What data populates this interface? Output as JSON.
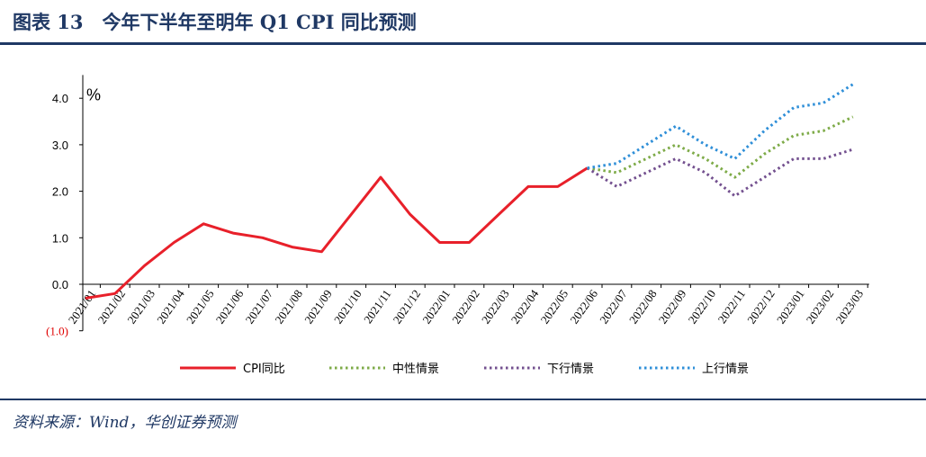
{
  "figure": {
    "title": "图表 13　今年下半年至明年 Q1 CPI 同比预测",
    "source": "资料来源：Wind，华创证券预测"
  },
  "chart_data": {
    "type": "line",
    "unit_label": "%",
    "ylim": [
      -1.0,
      4.5
    ],
    "yticks": [
      {
        "value": 4.0,
        "label": "4.0"
      },
      {
        "value": 3.0,
        "label": "3.0"
      },
      {
        "value": 2.0,
        "label": "2.0"
      },
      {
        "value": 1.0,
        "label": "1.0"
      },
      {
        "value": 0.0,
        "label": "0.0"
      },
      {
        "value": -1.0,
        "label": "(1.0)"
      }
    ],
    "categories": [
      "2021/01",
      "2021/02",
      "2021/03",
      "2021/04",
      "2021/05",
      "2021/06",
      "2021/07",
      "2021/08",
      "2021/09",
      "2021/10",
      "2021/11",
      "2021/12",
      "2022/01",
      "2022/02",
      "2022/03",
      "2022/04",
      "2022/05",
      "2022/06",
      "2022/07",
      "2022/08",
      "2022/09",
      "2022/10",
      "2022/11",
      "2022/12",
      "2023/01",
      "2023/02",
      "2023/03"
    ],
    "legend_position": "bottom",
    "grid": false,
    "series": [
      {
        "name": "CPI同比",
        "color": "#e8202a",
        "style": "solid",
        "values": [
          -0.3,
          -0.2,
          0.4,
          0.9,
          1.3,
          1.1,
          1.0,
          0.8,
          0.7,
          1.5,
          2.3,
          1.5,
          0.9,
          0.9,
          1.5,
          2.1,
          2.1,
          2.5,
          null,
          null,
          null,
          null,
          null,
          null,
          null,
          null,
          null
        ]
      },
      {
        "name": "中性情景",
        "color": "#7eab48",
        "style": "dotted",
        "values": [
          null,
          null,
          null,
          null,
          null,
          null,
          null,
          null,
          null,
          null,
          null,
          null,
          null,
          null,
          null,
          null,
          null,
          2.5,
          2.4,
          2.7,
          3.0,
          2.7,
          2.3,
          2.8,
          3.2,
          3.3,
          3.6
        ]
      },
      {
        "name": "下行情景",
        "color": "#73508f",
        "style": "dotted",
        "values": [
          null,
          null,
          null,
          null,
          null,
          null,
          null,
          null,
          null,
          null,
          null,
          null,
          null,
          null,
          null,
          null,
          null,
          2.5,
          2.1,
          2.4,
          2.7,
          2.4,
          1.9,
          2.3,
          2.7,
          2.7,
          2.9
        ]
      },
      {
        "name": "上行情景",
        "color": "#2f8fd8",
        "style": "dotted",
        "values": [
          null,
          null,
          null,
          null,
          null,
          null,
          null,
          null,
          null,
          null,
          null,
          null,
          null,
          null,
          null,
          null,
          null,
          2.5,
          2.6,
          3.0,
          3.4,
          3.0,
          2.7,
          3.3,
          3.8,
          3.9,
          4.3
        ]
      }
    ]
  }
}
